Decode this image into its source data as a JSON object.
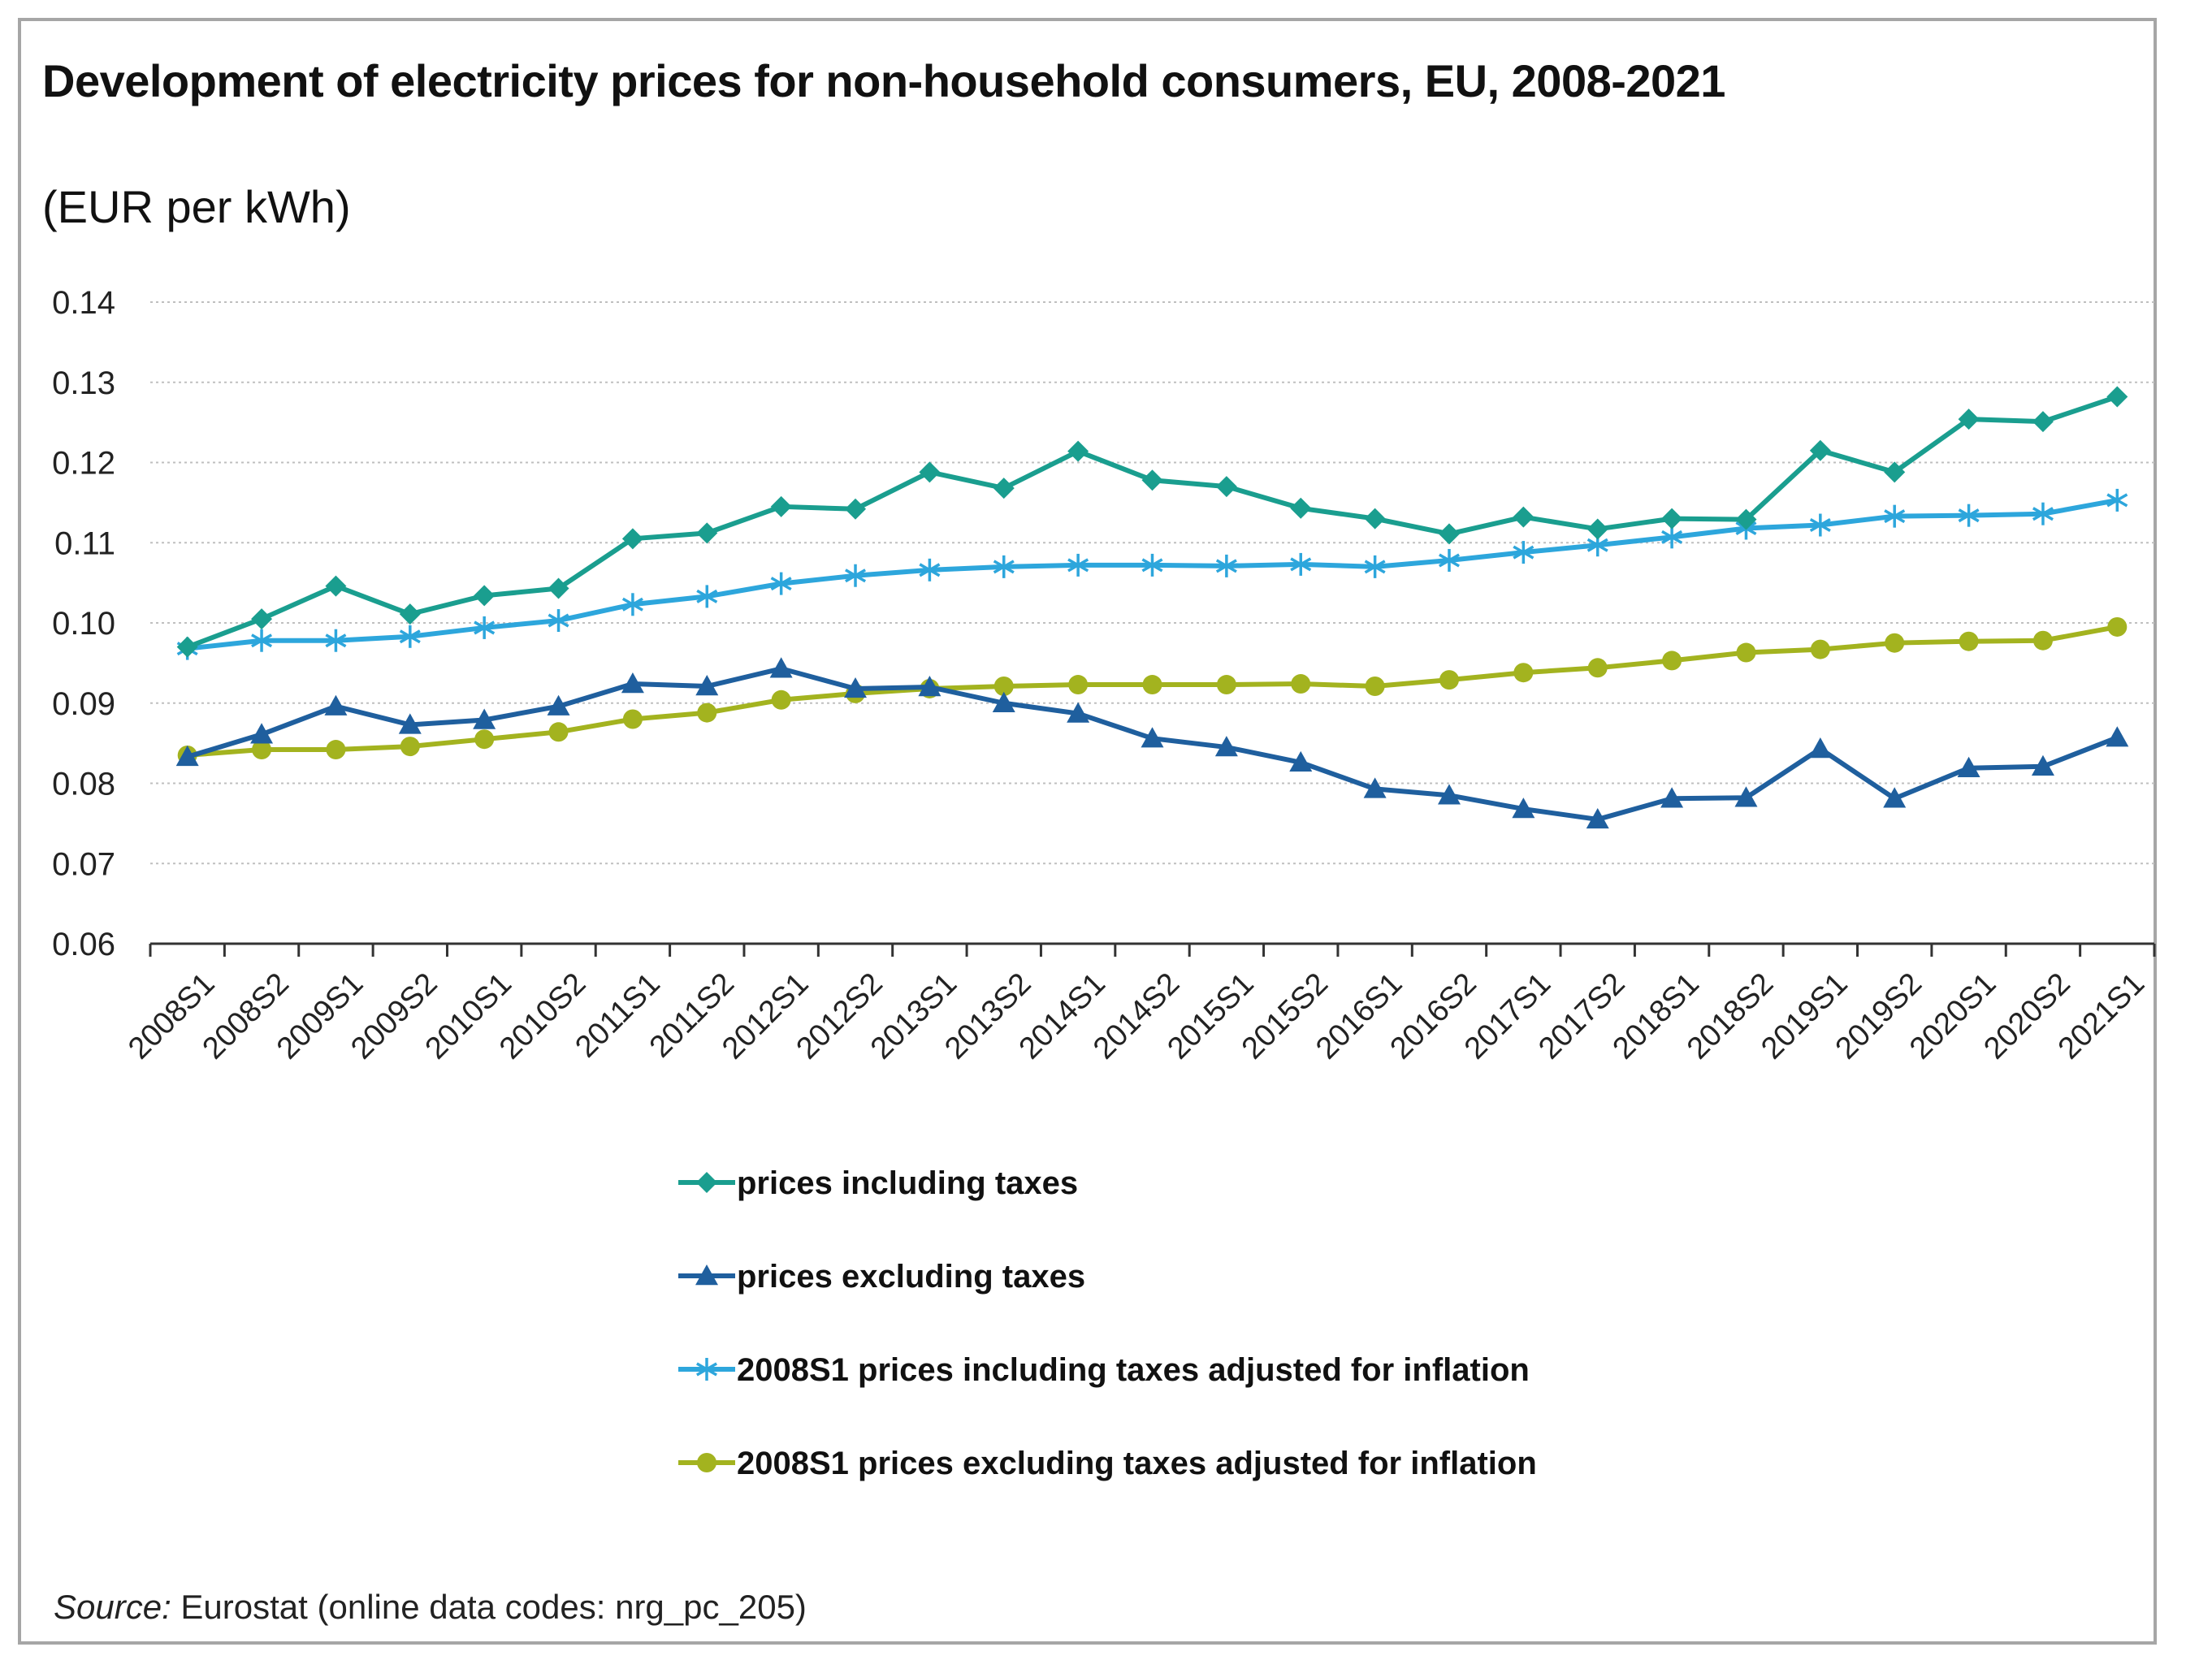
{
  "title": "Development of electricity prices for non-household consumers, EU, 2008-2021",
  "source_label": "Source:",
  "source_text": "Eurostat (online data codes: nrg_pc_205)",
  "chart_data": {
    "type": "line",
    "title": "Development of electricity prices for non-household consumers, EU, 2008-2021",
    "subtitle": "(EUR per kWh)",
    "xlabel": "",
    "ylabel": "",
    "ylim": [
      0.06,
      0.14
    ],
    "yticks": [
      "0.06",
      "0.07",
      "0.08",
      "0.09",
      "0.10",
      "0.11",
      "0.12",
      "0.13",
      "0.14"
    ],
    "grid": true,
    "legend_position": "bottom",
    "categories": [
      "2008S1",
      "2008S2",
      "2009S1",
      "2009S2",
      "2010S1",
      "2010S2",
      "2011S1",
      "2011S2",
      "2012S1",
      "2012S2",
      "2013S1",
      "2013S2",
      "2014S1",
      "2014S2",
      "2015S1",
      "2015S2",
      "2016S1",
      "2016S2",
      "2017S1",
      "2017S2",
      "2018S1",
      "2018S2",
      "2019S1",
      "2019S2",
      "2020S1",
      "2020S2",
      "2021S1"
    ],
    "series": [
      {
        "name": "prices including taxes",
        "color": "#1a9e8f",
        "marker": "diamond",
        "values": [
          0.097,
          0.1005,
          0.1046,
          0.1011,
          0.1034,
          0.1043,
          0.1105,
          0.1112,
          0.1145,
          0.1142,
          0.1188,
          0.1168,
          0.1214,
          0.1178,
          0.117,
          0.1143,
          0.113,
          0.1111,
          0.1132,
          0.1117,
          0.113,
          0.1129,
          0.1215,
          0.1188,
          0.1254,
          0.1251,
          0.1282
        ]
      },
      {
        "name": "prices excluding taxes",
        "color": "#1f5f9e",
        "marker": "triangle",
        "values": [
          0.0833,
          0.0861,
          0.0896,
          0.0873,
          0.0879,
          0.0896,
          0.0924,
          0.0921,
          0.0943,
          0.0918,
          0.092,
          0.09,
          0.0887,
          0.0856,
          0.0845,
          0.0826,
          0.0793,
          0.0785,
          0.0768,
          0.0755,
          0.0781,
          0.0782,
          0.0843,
          0.0781,
          0.0819,
          0.0821,
          0.0857
        ]
      },
      {
        "name": "2008S1 prices including taxes adjusted for inflation",
        "color": "#2da6dc",
        "marker": "asterisk",
        "values": [
          0.0968,
          0.0978,
          0.0978,
          0.0983,
          0.0994,
          0.1003,
          0.1023,
          0.1033,
          0.1049,
          0.1059,
          0.1066,
          0.107,
          0.1072,
          0.1072,
          0.1071,
          0.1073,
          0.107,
          0.1078,
          0.1088,
          0.1097,
          0.1107,
          0.1118,
          0.1122,
          0.1133,
          0.1134,
          0.1136,
          0.1153
        ]
      },
      {
        "name": "2008S1 prices excluding taxes adjusted for inflation",
        "color": "#a3b31f",
        "marker": "circle",
        "values": [
          0.0835,
          0.0842,
          0.0842,
          0.0846,
          0.0855,
          0.0864,
          0.088,
          0.0888,
          0.0904,
          0.0912,
          0.0918,
          0.0921,
          0.0923,
          0.0923,
          0.0923,
          0.0924,
          0.0921,
          0.0929,
          0.0938,
          0.0944,
          0.0953,
          0.0963,
          0.0967,
          0.0975,
          0.0977,
          0.0978,
          0.0995
        ]
      }
    ]
  }
}
